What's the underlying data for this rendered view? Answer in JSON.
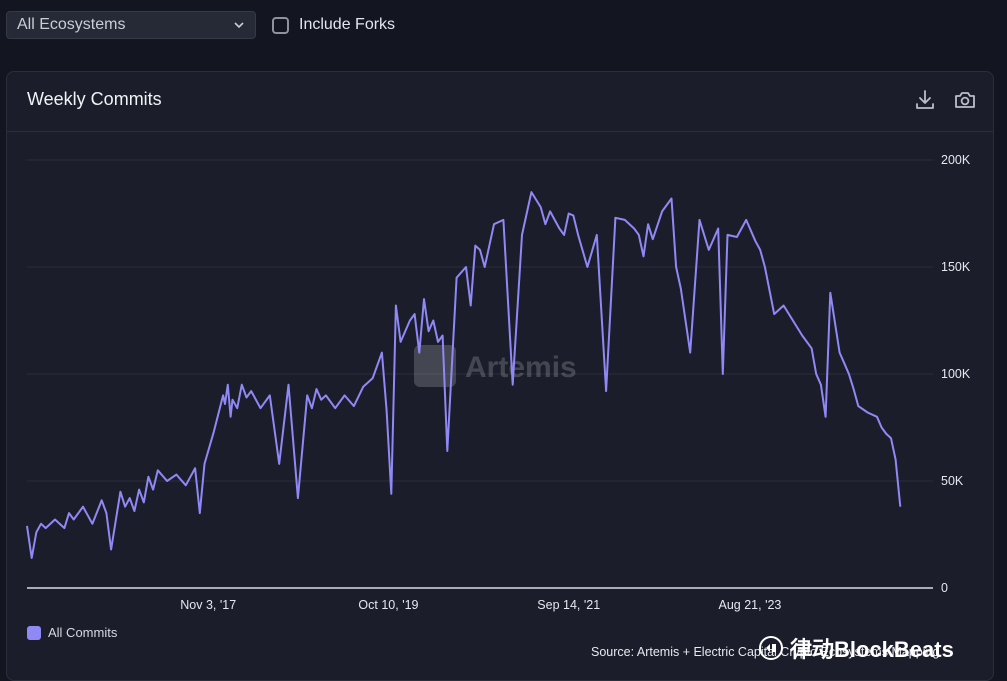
{
  "filters": {
    "ecosystem_select": "All Ecosystems",
    "include_forks_label": "Include Forks",
    "include_forks_checked": false
  },
  "card": {
    "title": "Weekly Commits",
    "icons": [
      "download-icon",
      "camera-icon"
    ]
  },
  "colors": {
    "line": "#8f88f5",
    "grid": "#2b2f3b",
    "axis_text": "#e6e8ef"
  },
  "watermark": {
    "center_text": "Artemis",
    "badge_text": "律动BlockBeats"
  },
  "source": "Source: Artemis + Electric Capital Crypto Ecosystems Mapping",
  "chart_data": {
    "type": "line",
    "title": "Weekly Commits",
    "xlabel": "",
    "ylabel": "",
    "ylim": [
      0,
      200000
    ],
    "yticks": [
      0,
      50000,
      100000,
      150000,
      200000
    ],
    "ytick_labels": [
      "0",
      "50K",
      "100K",
      "150K",
      "200K"
    ],
    "xticks": [
      2017.84,
      2019.77,
      2021.7,
      2023.64
    ],
    "xtick_labels": [
      "Nov 3, '17",
      "Oct 10, '19",
      "Sep 14, '21",
      "Aug 21, '23"
    ],
    "xlim": [
      2015.9,
      2025.6
    ],
    "grid": true,
    "legend": "bottom-left",
    "series": [
      {
        "name": "All Commits",
        "x": [
          2015.9,
          2015.95,
          2016.0,
          2016.05,
          2016.1,
          2016.2,
          2016.3,
          2016.35,
          2016.4,
          2016.5,
          2016.6,
          2016.7,
          2016.75,
          2016.8,
          2016.9,
          2016.95,
          2017.0,
          2017.05,
          2017.1,
          2017.15,
          2017.2,
          2017.25,
          2017.3,
          2017.4,
          2017.5,
          2017.6,
          2017.7,
          2017.75,
          2017.8,
          2017.9,
          2018.0,
          2018.02,
          2018.05,
          2018.08,
          2018.1,
          2018.15,
          2018.2,
          2018.25,
          2018.3,
          2018.4,
          2018.5,
          2018.6,
          2018.7,
          2018.8,
          2018.9,
          2018.95,
          2019.0,
          2019.05,
          2019.1,
          2019.2,
          2019.3,
          2019.4,
          2019.5,
          2019.6,
          2019.7,
          2019.75,
          2019.8,
          2019.85,
          2019.9,
          2020.0,
          2020.05,
          2020.1,
          2020.15,
          2020.2,
          2020.25,
          2020.3,
          2020.35,
          2020.4,
          2020.5,
          2020.6,
          2020.65,
          2020.7,
          2020.75,
          2020.8,
          2020.9,
          2021.0,
          2021.1,
          2021.2,
          2021.25,
          2021.3,
          2021.4,
          2021.45,
          2021.5,
          2021.55,
          2021.6,
          2021.65,
          2021.7,
          2021.75,
          2021.8,
          2021.9,
          2022.0,
          2022.1,
          2022.2,
          2022.3,
          2022.4,
          2022.45,
          2022.5,
          2022.55,
          2022.6,
          2022.7,
          2022.8,
          2022.85,
          2022.9,
          2023.0,
          2023.1,
          2023.2,
          2023.3,
          2023.35,
          2023.4,
          2023.5,
          2023.6,
          2023.7,
          2023.75,
          2023.8,
          2023.9,
          2024.0,
          2024.1,
          2024.2,
          2024.3,
          2024.35,
          2024.4,
          2024.45,
          2024.5,
          2024.6,
          2024.65,
          2024.7,
          2024.75,
          2024.8,
          2024.9,
          2025.0,
          2025.05,
          2025.1,
          2025.15,
          2025.2,
          2025.25
        ],
        "values": [
          29000,
          14000,
          26000,
          30000,
          28000,
          32000,
          28000,
          35000,
          32000,
          38000,
          30000,
          41000,
          35000,
          18000,
          45000,
          38000,
          42000,
          36000,
          46000,
          40000,
          52000,
          46000,
          55000,
          50000,
          53000,
          48000,
          56000,
          35000,
          58000,
          73000,
          90000,
          86000,
          95000,
          80000,
          88000,
          84000,
          95000,
          89000,
          92000,
          84000,
          90000,
          58000,
          95000,
          42000,
          90000,
          84000,
          93000,
          88000,
          90000,
          84000,
          90000,
          85000,
          94000,
          98000,
          110000,
          83000,
          44000,
          132000,
          115000,
          125000,
          128000,
          110000,
          135000,
          120000,
          125000,
          115000,
          118000,
          64000,
          145000,
          150000,
          132000,
          160000,
          158000,
          150000,
          170000,
          172000,
          95000,
          165000,
          175000,
          185000,
          178000,
          170000,
          176000,
          172000,
          168000,
          165000,
          175000,
          174000,
          165000,
          150000,
          165000,
          92000,
          173000,
          172000,
          168000,
          165000,
          155000,
          170000,
          163000,
          176000,
          182000,
          150000,
          140000,
          110000,
          172000,
          158000,
          168000,
          100000,
          165000,
          164000,
          172000,
          162000,
          158000,
          150000,
          128000,
          132000,
          125000,
          118000,
          112000,
          100000,
          95000,
          80000,
          138000,
          110000,
          105000,
          100000,
          93000,
          85000,
          82000,
          80000,
          75000,
          72000,
          70000,
          60000,
          38000
        ]
      }
    ]
  }
}
